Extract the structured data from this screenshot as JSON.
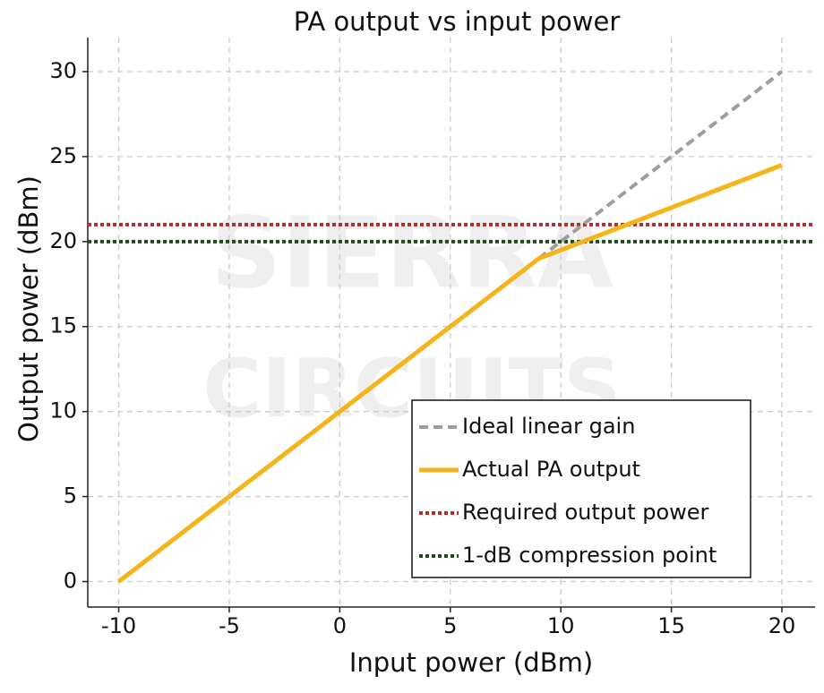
{
  "chart_data": {
    "type": "line",
    "title": "PA output vs input power",
    "x_label": "Input power (dBm)",
    "y_label": "Output power (dBm)",
    "watermark": [
      "SIERRA",
      "CIRCUITS"
    ],
    "x": [
      -10,
      9,
      20
    ],
    "series": [
      {
        "name": "Ideal linear gain",
        "color": "#9e9e9e",
        "style": "dashed",
        "values": [
          0,
          19,
          30
        ]
      },
      {
        "name": "Actual PA output",
        "color": "#f5b41a",
        "style": "solid",
        "values": [
          0,
          19,
          24.5
        ]
      }
    ],
    "hlines": [
      {
        "name": "Required output power",
        "color": "#b52a2a",
        "style": "dotted",
        "y": 21
      },
      {
        "name": "1-dB compression point",
        "color": "#1f4d1a",
        "style": "dotted",
        "y": 20
      }
    ],
    "xlim": [
      -11.4,
      21.5
    ],
    "ylim": [
      -1.5,
      32
    ],
    "xticks": [
      -10,
      -5,
      0,
      5,
      10,
      15,
      20
    ],
    "yticks": [
      0,
      5,
      10,
      15,
      20,
      25,
      30
    ],
    "grid": true,
    "legend": "lower right"
  }
}
